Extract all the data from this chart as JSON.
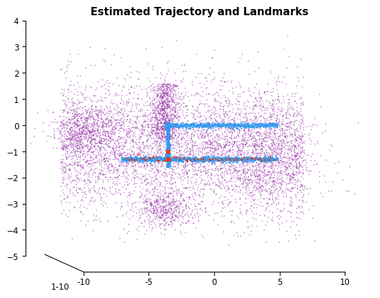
{
  "title": "Estimated Trajectory and Landmarks",
  "xlim": [
    -10,
    10
  ],
  "ylim": [
    -5,
    4
  ],
  "title_fontsize": 11,
  "background_color": "#ffffff",
  "purple_color": "#9933AA",
  "blue_color": "#3399EE",
  "red_color": "#EE3300",
  "seed": 42,
  "yticks": [
    -5,
    -4,
    -3,
    -2,
    -1,
    0,
    1,
    2,
    3,
    4
  ],
  "xticks": [
    -10,
    -5,
    0,
    5,
    10
  ],
  "diag_label": "1-10"
}
